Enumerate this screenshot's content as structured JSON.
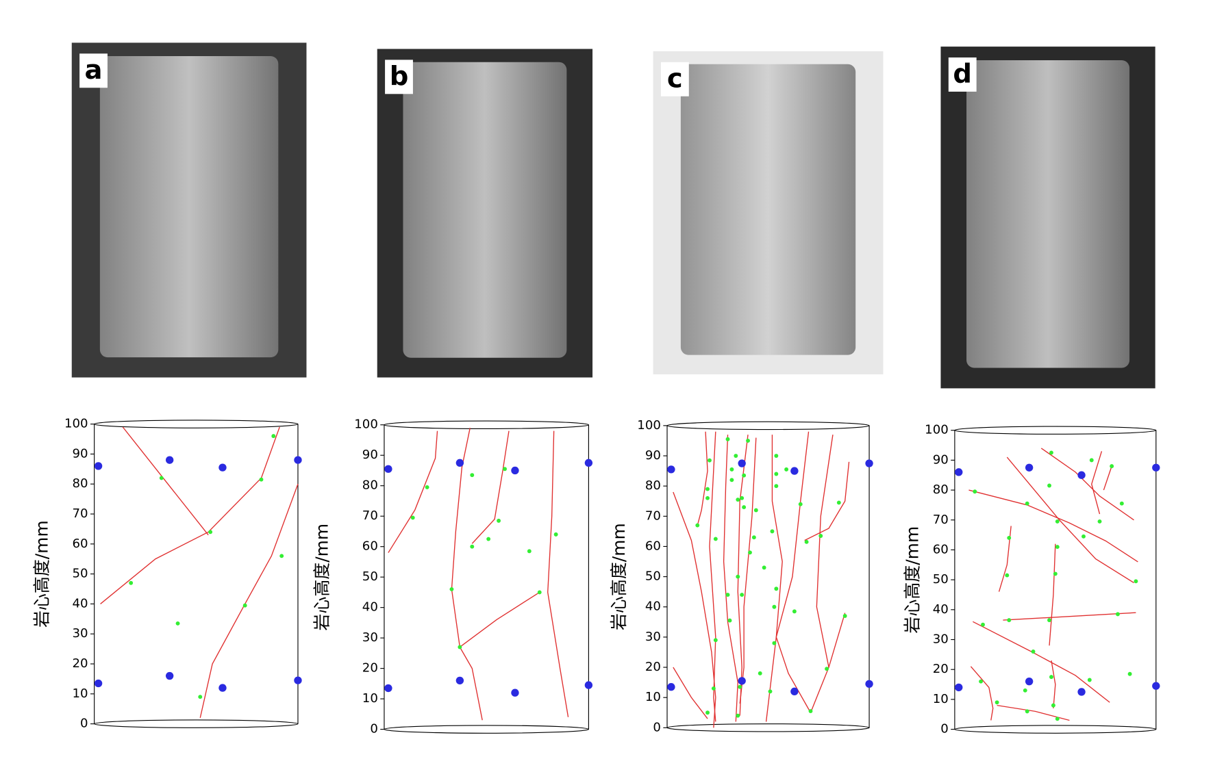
{
  "photos": [
    {
      "label": "a"
    },
    {
      "label": "b"
    },
    {
      "label": "c"
    },
    {
      "label": "d"
    }
  ],
  "chart_data": [
    {
      "type": "scatter",
      "ylabel": "岩心高度/mm",
      "ylim": [
        0,
        100
      ],
      "yticks": [
        0,
        10,
        20,
        30,
        40,
        50,
        60,
        70,
        80,
        90,
        100
      ],
      "xlim": [
        0,
        1
      ],
      "series": [
        {
          "color": "#2a2ae0",
          "x": [
            0.02,
            0.37,
            0.63,
            1.0,
            0.02,
            0.37,
            0.63,
            1.0
          ],
          "values": [
            86,
            88,
            85.5,
            88,
            13.5,
            16,
            12,
            14.5
          ]
        },
        {
          "color": "#33ee33",
          "x": [
            0.88,
            0.82,
            0.33,
            0.57,
            0.18,
            0.41,
            0.92,
            0.74,
            0.52
          ],
          "values": [
            96,
            81.5,
            82,
            64,
            47,
            33.5,
            56,
            39.5,
            9
          ]
        }
      ],
      "line_color": "#e03030",
      "lines": [
        {
          "x": [
            0.14,
            0.56
          ],
          "y": [
            99,
            63
          ]
        },
        {
          "x": [
            0.03,
            0.3,
            0.56,
            0.82,
            0.91
          ],
          "y": [
            40,
            55,
            64,
            82,
            99
          ]
        },
        {
          "x": [
            0.52,
            0.58,
            0.74,
            0.87,
            1.0
          ],
          "y": [
            2,
            20,
            40,
            56,
            80
          ]
        }
      ]
    },
    {
      "type": "scatter",
      "ylabel": "岩心高度/mm",
      "ylim": [
        0,
        100
      ],
      "yticks": [
        0,
        10,
        20,
        30,
        40,
        50,
        60,
        70,
        80,
        90,
        100
      ],
      "xlim": [
        0,
        1
      ],
      "series": [
        {
          "color": "#2a2ae0",
          "x": [
            0.02,
            0.37,
            0.64,
            1.0,
            0.02,
            0.37,
            0.64,
            1.0
          ],
          "values": [
            85.5,
            87.5,
            85,
            87.5,
            13.5,
            16,
            12,
            14.5
          ]
        },
        {
          "color": "#33ee33",
          "x": [
            0.21,
            0.14,
            0.43,
            0.59,
            0.56,
            0.51,
            0.43,
            0.71,
            0.84,
            0.33,
            0.76,
            0.37
          ],
          "values": [
            79.5,
            69.5,
            83.5,
            85.5,
            68.5,
            62.5,
            60,
            58.5,
            64,
            46,
            45,
            27
          ]
        }
      ],
      "line_color": "#e03030",
      "lines": [
        {
          "x": [
            0.02,
            0.15,
            0.25,
            0.26
          ],
          "y": [
            58,
            72,
            89,
            98
          ]
        },
        {
          "x": [
            0.42,
            0.38,
            0.35,
            0.33,
            0.37,
            0.43,
            0.48
          ],
          "y": [
            99,
            86,
            65,
            46,
            27,
            20,
            3
          ]
        },
        {
          "x": [
            0.61,
            0.58,
            0.54,
            0.43
          ],
          "y": [
            98,
            85,
            69,
            61
          ]
        },
        {
          "x": [
            0.37,
            0.55,
            0.76
          ],
          "y": [
            27,
            36,
            45
          ]
        },
        {
          "x": [
            0.83,
            0.82,
            0.8,
            0.86,
            0.9
          ],
          "y": [
            98,
            70,
            45,
            20,
            4
          ]
        }
      ]
    },
    {
      "type": "scatter",
      "ylabel": "岩心高度/mm",
      "ylim": [
        0,
        100
      ],
      "yticks": [
        0,
        10,
        20,
        30,
        40,
        50,
        60,
        70,
        80,
        90,
        100
      ],
      "xlim": [
        0,
        1
      ],
      "series": [
        {
          "color": "#2a2ae0",
          "x": [
            0.02,
            0.37,
            0.63,
            1.0,
            0.02,
            0.37,
            0.63,
            1.0
          ],
          "values": [
            85.5,
            87.5,
            85,
            87.5,
            13.5,
            15.5,
            12,
            14.5
          ]
        },
        {
          "color": "#33ee33",
          "x": [
            0.3,
            0.4,
            0.21,
            0.34,
            0.54,
            0.32,
            0.38,
            0.54,
            0.59,
            0.2,
            0.32,
            0.54,
            0.2,
            0.35,
            0.37,
            0.38,
            0.44,
            0.15,
            0.66,
            0.85,
            0.43,
            0.24,
            0.76,
            0.69,
            0.52,
            0.41,
            0.35,
            0.48,
            0.54,
            0.3,
            0.37,
            0.53,
            0.31,
            0.63,
            0.88,
            0.24,
            0.53,
            0.79,
            0.46,
            0.36,
            0.23,
            0.51,
            0.2,
            0.35,
            0.71
          ],
          "values": [
            95.5,
            95,
            88.5,
            90,
            90,
            85.5,
            83.5,
            84,
            85.5,
            79,
            82,
            80,
            76,
            75.5,
            76,
            73,
            72,
            67,
            74,
            74.5,
            63,
            62.5,
            63.5,
            61.5,
            65,
            58,
            50,
            53,
            46,
            44,
            44,
            40,
            35.5,
            38.5,
            37,
            29,
            28,
            19.5,
            18,
            13.5,
            13,
            12,
            5,
            4,
            5.5
          ]
        }
      ],
      "line_color": "#e03030",
      "lines": [
        {
          "x": [
            0.03,
            0.12,
            0.17,
            0.22,
            0.24,
            0.23
          ],
          "y": [
            78,
            62,
            45,
            25,
            10,
            0
          ]
        },
        {
          "x": [
            0.19,
            0.2,
            0.17,
            0.15
          ],
          "y": [
            98,
            85,
            72,
            67
          ]
        },
        {
          "x": [
            0.24,
            0.21,
            0.24,
            0.23,
            0.24
          ],
          "y": [
            98,
            60,
            30,
            10,
            2
          ]
        },
        {
          "x": [
            0.3,
            0.29,
            0.28,
            0.3,
            0.35,
            0.34
          ],
          "y": [
            97,
            80,
            55,
            35,
            15,
            2
          ]
        },
        {
          "x": [
            0.4,
            0.36,
            0.35,
            0.37,
            0.36
          ],
          "y": [
            97,
            75,
            45,
            20,
            4
          ]
        },
        {
          "x": [
            0.44,
            0.42,
            0.38,
            0.38,
            0.36
          ],
          "y": [
            96,
            70,
            40,
            20,
            8
          ]
        },
        {
          "x": [
            0.52,
            0.52,
            0.57,
            0.54,
            0.49
          ],
          "y": [
            97,
            75,
            55,
            30,
            2
          ]
        },
        {
          "x": [
            0.7,
            0.66,
            0.62,
            0.54,
            0.6,
            0.71
          ],
          "y": [
            98,
            75,
            50,
            30,
            18,
            5
          ]
        },
        {
          "x": [
            0.82,
            0.76,
            0.74,
            0.8
          ],
          "y": [
            97,
            70,
            40,
            20
          ]
        },
        {
          "x": [
            0.68,
            0.8,
            0.88,
            0.9
          ],
          "y": [
            62,
            66,
            75,
            88
          ]
        },
        {
          "x": [
            0.03,
            0.12,
            0.2
          ],
          "y": [
            20,
            10,
            3
          ]
        },
        {
          "x": [
            0.71,
            0.8,
            0.88
          ],
          "y": [
            5,
            20,
            38
          ]
        }
      ]
    },
    {
      "type": "scatter",
      "ylabel": "岩心高度/mm",
      "ylim": [
        0,
        100
      ],
      "yticks": [
        0,
        10,
        20,
        30,
        40,
        50,
        60,
        70,
        80,
        90,
        100
      ],
      "xlim": [
        0,
        1
      ],
      "series": [
        {
          "color": "#2a2ae0",
          "x": [
            0.02,
            0.37,
            0.63,
            1.0,
            0.02,
            0.37,
            0.63,
            1.0
          ],
          "values": [
            86,
            87.5,
            85,
            87.5,
            14,
            16,
            12.5,
            14.5
          ]
        },
        {
          "color": "#33ee33",
          "x": [
            0.48,
            0.68,
            0.78,
            0.47,
            0.36,
            0.1,
            0.51,
            0.72,
            0.83,
            0.64,
            0.27,
            0.51,
            0.26,
            0.5,
            0.9,
            0.27,
            0.47,
            0.81,
            0.14,
            0.39,
            0.13,
            0.48,
            0.67,
            0.87,
            0.35,
            0.21,
            0.49,
            0.36,
            0.51
          ],
          "values": [
            92.5,
            90,
            88,
            81.5,
            75.5,
            79.5,
            69.5,
            69.5,
            75.5,
            64.5,
            64,
            61,
            51.5,
            52,
            49.5,
            36.5,
            36.5,
            38.5,
            35,
            26,
            16,
            17.5,
            16.5,
            18.5,
            13,
            9,
            8,
            6,
            3.5
          ]
        }
      ],
      "line_color": "#e03030",
      "lines": [
        {
          "x": [
            0.26,
            0.52,
            0.7,
            0.89
          ],
          "y": [
            91,
            70,
            57,
            49
          ]
        },
        {
          "x": [
            0.43,
            0.6,
            0.72,
            0.89
          ],
          "y": [
            94,
            86,
            78,
            70
          ]
        },
        {
          "x": [
            0.07,
            0.36,
            0.57,
            0.75,
            0.91
          ],
          "y": [
            80,
            75,
            69,
            63,
            56
          ]
        },
        {
          "x": [
            0.73,
            0.68,
            0.72
          ],
          "y": [
            93,
            82,
            72
          ]
        },
        {
          "x": [
            0.78,
            0.74
          ],
          "y": [
            88,
            80
          ]
        },
        {
          "x": [
            0.28,
            0.26,
            0.22
          ],
          "y": [
            68,
            55,
            46
          ]
        },
        {
          "x": [
            0.5,
            0.49,
            0.47
          ],
          "y": [
            62,
            45,
            28
          ]
        },
        {
          "x": [
            0.24,
            0.9
          ],
          "y": [
            36.5,
            39
          ]
        },
        {
          "x": [
            0.09,
            0.38,
            0.6,
            0.77
          ],
          "y": [
            36,
            26,
            18,
            9
          ]
        },
        {
          "x": [
            0.08,
            0.17,
            0.19,
            0.18
          ],
          "y": [
            21,
            14,
            7,
            3
          ]
        },
        {
          "x": [
            0.21,
            0.4,
            0.57
          ],
          "y": [
            8,
            6,
            3
          ]
        },
        {
          "x": [
            0.48,
            0.5,
            0.49
          ],
          "y": [
            23,
            15,
            7
          ]
        }
      ]
    }
  ]
}
